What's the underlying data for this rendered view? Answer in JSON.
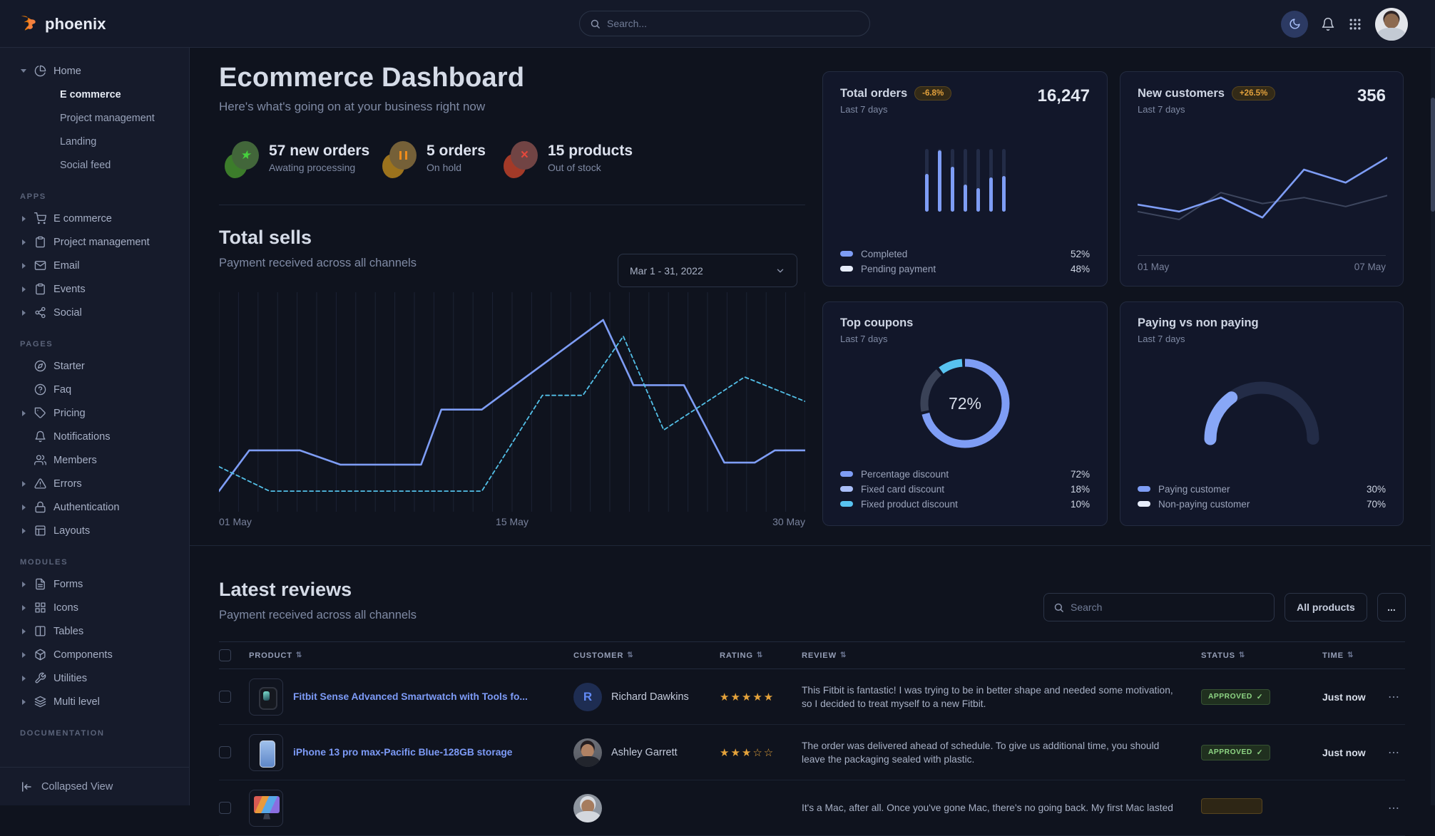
{
  "colors": {
    "primary": "#7e9df5",
    "info": "#57c0f0",
    "success": "#8ed584",
    "warning": "#e3a13c",
    "danger": "#e0604f"
  },
  "navbar": {
    "brand": "phoenix",
    "search_placeholder": "Search..."
  },
  "sidebar": {
    "home": {
      "label": "Home",
      "icon": "pie",
      "expanded": true,
      "children": [
        {
          "label": "E commerce",
          "active": true
        },
        {
          "label": "Project management",
          "active": false
        },
        {
          "label": "Landing",
          "active": false
        },
        {
          "label": "Social feed",
          "active": false
        }
      ]
    },
    "sections": [
      {
        "label": "APPS",
        "items": [
          {
            "label": "E commerce",
            "icon": "cart",
            "caret": true
          },
          {
            "label": "Project management",
            "icon": "clipboard",
            "caret": true
          },
          {
            "label": "Email",
            "icon": "mail",
            "caret": true
          },
          {
            "label": "Events",
            "icon": "clipboard",
            "caret": true
          },
          {
            "label": "Social",
            "icon": "share2",
            "caret": true
          }
        ]
      },
      {
        "label": "PAGES",
        "items": [
          {
            "label": "Starter",
            "icon": "compass",
            "caret": false
          },
          {
            "label": "Faq",
            "icon": "help",
            "caret": false
          },
          {
            "label": "Pricing",
            "icon": "tag",
            "caret": true
          },
          {
            "label": "Notifications",
            "icon": "bell",
            "caret": false
          },
          {
            "label": "Members",
            "icon": "users",
            "caret": false
          },
          {
            "label": "Errors",
            "icon": "alert",
            "caret": true
          },
          {
            "label": "Authentication",
            "icon": "lock",
            "caret": true
          },
          {
            "label": "Layouts",
            "icon": "layout",
            "caret": true
          }
        ]
      },
      {
        "label": "MODULES",
        "items": [
          {
            "label": "Forms",
            "icon": "file",
            "caret": true
          },
          {
            "label": "Icons",
            "icon": "grid",
            "caret": true
          },
          {
            "label": "Tables",
            "icon": "columns",
            "caret": true
          },
          {
            "label": "Components",
            "icon": "package",
            "caret": true
          },
          {
            "label": "Utilities",
            "icon": "tool",
            "caret": true
          },
          {
            "label": "Multi level",
            "icon": "layers",
            "caret": true
          }
        ]
      },
      {
        "label": "DOCUMENTATION",
        "items": []
      }
    ],
    "footer_label": "Collapsed View"
  },
  "page": {
    "title": "Ecommerce Dashboard",
    "subtitle": "Here's what's going on at your business right now"
  },
  "stats": [
    {
      "headline": "57 new orders",
      "sub": "Awating processing",
      "variant": "success",
      "glyph": "star"
    },
    {
      "headline": "5 orders",
      "sub": "On hold",
      "variant": "warning",
      "glyph": "pause"
    },
    {
      "headline": "15 products",
      "sub": "Out of stock",
      "variant": "danger",
      "glyph": "x"
    }
  ],
  "chart_data": [
    {
      "id": "total-sells",
      "type": "line",
      "title": "Total sells",
      "subtitle": "Payment received across all channels",
      "date_range": "Mar 1 - 31, 2022",
      "x_labels": [
        "01 May",
        "15 May",
        "30 May"
      ],
      "x_range": [
        1,
        30
      ],
      "y_range": [
        0,
        100
      ],
      "grid": "vertical-31",
      "legend_position": "none",
      "series": [
        {
          "name": "current",
          "style": "solid",
          "color": "#7e9df5",
          "points": [
            [
              0,
              8
            ],
            [
              1.5,
              28
            ],
            [
              4,
              28
            ],
            [
              6,
              21
            ],
            [
              10,
              21
            ],
            [
              11,
              48
            ],
            [
              13,
              48
            ],
            [
              19,
              92
            ],
            [
              20.5,
              60
            ],
            [
              23,
              60
            ],
            [
              25,
              22
            ],
            [
              26.5,
              22
            ],
            [
              27.5,
              28
            ],
            [
              29,
              28
            ]
          ]
        },
        {
          "name": "previous",
          "style": "dashed",
          "color": "#53c0e8",
          "points": [
            [
              0,
              20
            ],
            [
              2.5,
              8
            ],
            [
              13,
              8
            ],
            [
              16,
              55
            ],
            [
              18,
              55
            ],
            [
              20,
              84
            ],
            [
              22,
              38
            ],
            [
              26,
              64
            ],
            [
              29,
              52
            ]
          ]
        }
      ]
    },
    {
      "id": "total-orders",
      "type": "bar",
      "title": "Total orders",
      "badge": "-6.8%",
      "value": "16,247",
      "period": "Last 7 days",
      "values_pct": [
        60,
        98,
        72,
        43,
        37,
        54,
        57
      ],
      "bar_color": "#7e9df5",
      "track_color": "#232c47",
      "legend": [
        {
          "label": "Completed",
          "value": "52%",
          "swatch": "#7e9df5"
        },
        {
          "label": "Pending payment",
          "value": "48%",
          "swatch": "#e7edfb"
        }
      ]
    },
    {
      "id": "new-customers",
      "type": "line",
      "title": "New customers",
      "badge": "+26.5%",
      "value": "356",
      "period": "Last 7 days",
      "x_labels": [
        "01 May",
        "07 May"
      ],
      "y_range": [
        0,
        100
      ],
      "series": [
        {
          "name": "current",
          "color": "#7e9df5",
          "values": [
            35,
            28,
            42,
            22,
            70,
            57,
            82
          ]
        },
        {
          "name": "previous",
          "color": "#3d465e",
          "values": [
            28,
            20,
            47,
            36,
            42,
            33,
            44
          ]
        }
      ]
    },
    {
      "id": "top-coupons",
      "type": "donut",
      "title": "Top coupons",
      "period": "Last 7 days",
      "center_label": "72%",
      "slices": [
        {
          "label": "Percentage discount",
          "value": 72,
          "color": "#7e9df5",
          "swatch": "#7e9df5"
        },
        {
          "label": "Fixed card discount",
          "value": 18,
          "color": "#3a4257",
          "swatch": "#a9bef8"
        },
        {
          "label": "Fixed product discount",
          "value": 10,
          "color": "#58c3f0",
          "swatch": "#58c3f0"
        }
      ]
    },
    {
      "id": "paying-vs-non-paying",
      "type": "gauge",
      "title": "Paying vs non paying",
      "period": "Last 7 days",
      "slices": [
        {
          "label": "Paying customer",
          "value": 30,
          "color": "#88a7f7",
          "swatch": "#7e9df5"
        },
        {
          "label": "Non-paying customer",
          "value": 70,
          "color": "#232c47",
          "swatch": "#e7edfb"
        }
      ]
    }
  ],
  "reviews": {
    "title": "Latest reviews",
    "subtitle": "Payment received across all channels",
    "search_placeholder": "Search",
    "filter_label": "All products",
    "more_label": "...",
    "columns": [
      "PRODUCT",
      "CUSTOMER",
      "RATING",
      "REVIEW",
      "STATUS",
      "TIME"
    ],
    "rows": [
      {
        "product": "Fitbit Sense Advanced Smartwatch with Tools fo...",
        "thumb": "smartwatch",
        "customer": "Richard Dawkins",
        "avatar": "initial-R",
        "rating": 5,
        "review": "This Fitbit is fantastic! I was trying to be in better shape and needed some motivation, so I decided to treat myself to a new Fitbit.",
        "status": "APPROVED",
        "status_variant": "success",
        "time": "Just now"
      },
      {
        "product": "iPhone 13 pro max-Pacific Blue-128GB storage",
        "thumb": "iphone",
        "customer": "Ashley Garrett",
        "avatar": "photo-1",
        "rating": 3,
        "review": "The order was delivered ahead of schedule. To give us additional time, you should leave the packaging sealed with plastic.",
        "status": "APPROVED",
        "status_variant": "success",
        "time": "Just now"
      },
      {
        "product": "",
        "thumb": "imac",
        "customer": "",
        "avatar": "photo-2",
        "rating": null,
        "review": "It's a Mac, after all. Once you've gone Mac, there's no going back. My first Mac lasted",
        "status": "",
        "status_variant": "warning",
        "time": ""
      }
    ]
  }
}
